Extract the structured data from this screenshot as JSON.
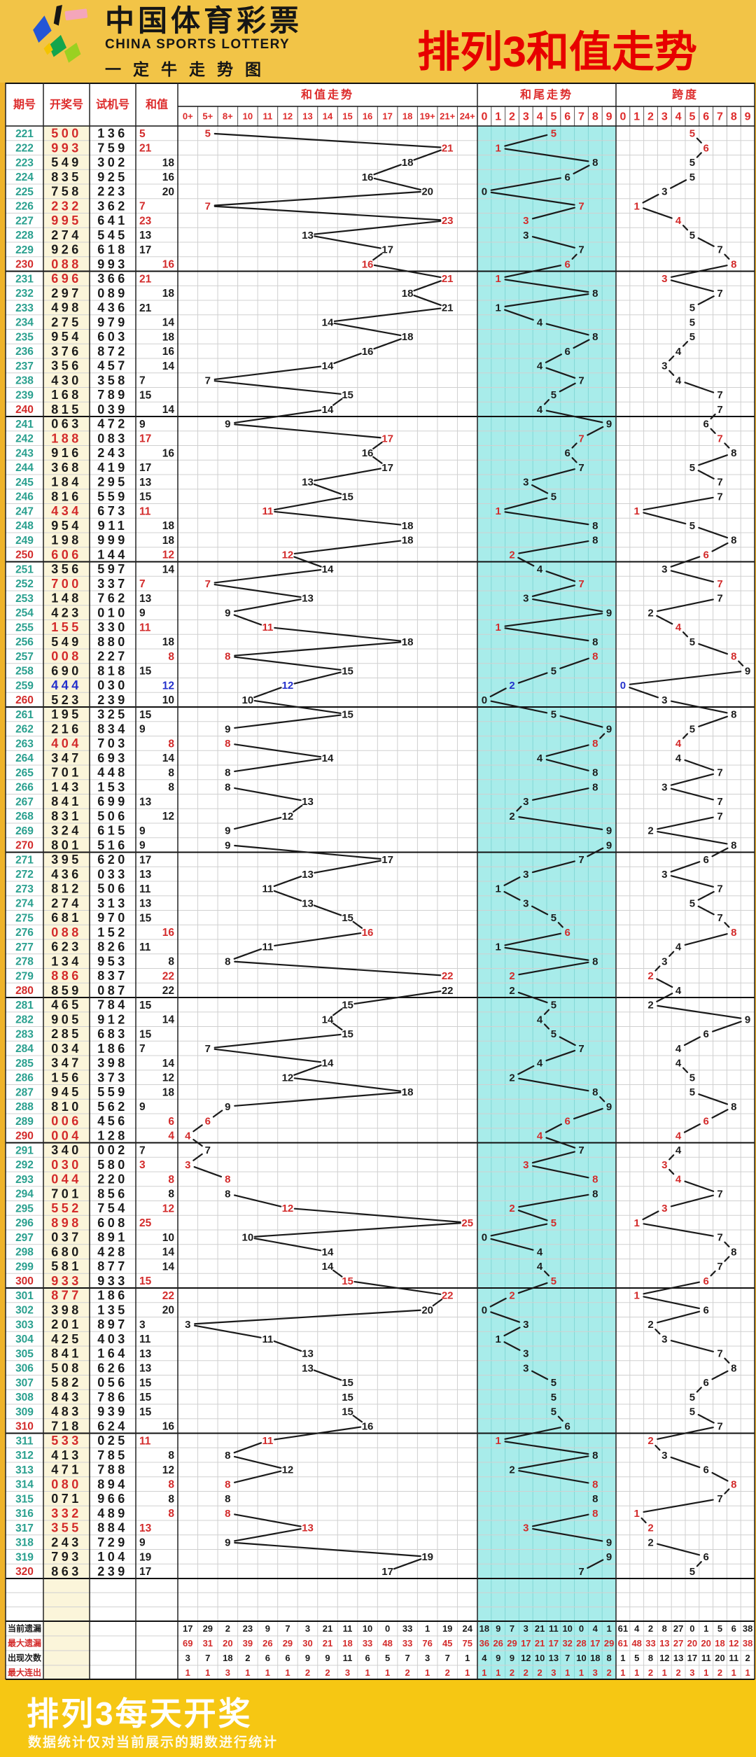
{
  "header": {
    "brand_cn": "中国体育彩票",
    "brand_en": "CHINA SPORTS LOTTERY",
    "brand_sub": "一定牛走势图",
    "title": "排列3和值走势"
  },
  "footer": {
    "title": "排列3每天开奖",
    "note": "数据统计仅对当前展示的期数进行统计"
  },
  "colors": {
    "red": "#d32b2b",
    "blue": "#2431cc",
    "teal": "#2aa08f",
    "black": "#1c1c1c",
    "header_red": "#dd2b2b",
    "title_red": "#e70000",
    "cyan_bg": "#a8ecea",
    "cyan_grid": "#83d7d5",
    "win_bg": "#fbf5da",
    "header_bg": "#f2c447",
    "footer_bg": "#f6c713",
    "grid_light": "#d0d0d0",
    "grid_dark": "#222222",
    "side_margin": "#efb32a",
    "line": "#1a1a1a"
  },
  "chart_data": {
    "type": "table",
    "title": "排列3和值走势",
    "columns": {
      "period": "期号",
      "win": "开奖号",
      "test": "试机号",
      "sum": "和值",
      "sum_trend": "和值走势",
      "sum_trend_cols": [
        "0+",
        "5+",
        "8+",
        "10",
        "11",
        "12",
        "13",
        "14",
        "15",
        "16",
        "17",
        "18",
        "19+",
        "21+",
        "24+"
      ],
      "tail_trend": "和尾走势",
      "tail_cols": [
        "0",
        "1",
        "2",
        "3",
        "4",
        "5",
        "6",
        "7",
        "8",
        "9"
      ],
      "span": "跨度",
      "span_cols": [
        "0",
        "1",
        "2",
        "3",
        "4",
        "5",
        "6",
        "7",
        "8",
        "9"
      ]
    },
    "row_format": [
      "period",
      "win",
      "test",
      "sum",
      "tail",
      "span",
      "flag(0=black,1=red-repeat,2=blue-triple)"
    ],
    "rows": [
      [
        221,
        "500",
        "136",
        5,
        5,
        5,
        1
      ],
      [
        222,
        "993",
        "759",
        21,
        1,
        6,
        1
      ],
      [
        223,
        "549",
        "302",
        18,
        8,
        5,
        0
      ],
      [
        224,
        "835",
        "925",
        16,
        6,
        5,
        0
      ],
      [
        225,
        "758",
        "223",
        20,
        0,
        3,
        0
      ],
      [
        226,
        "232",
        "362",
        7,
        7,
        1,
        1
      ],
      [
        227,
        "995",
        "641",
        23,
        3,
        4,
        1
      ],
      [
        228,
        "274",
        "545",
        13,
        3,
        5,
        0
      ],
      [
        229,
        "926",
        "618",
        17,
        7,
        7,
        0
      ],
      [
        230,
        "088",
        "993",
        16,
        6,
        8,
        1
      ],
      [
        231,
        "696",
        "366",
        21,
        1,
        3,
        1
      ],
      [
        232,
        "297",
        "089",
        18,
        8,
        7,
        0
      ],
      [
        233,
        "498",
        "436",
        21,
        1,
        5,
        0
      ],
      [
        234,
        "275",
        "979",
        14,
        4,
        5,
        0
      ],
      [
        235,
        "954",
        "603",
        18,
        8,
        5,
        0
      ],
      [
        236,
        "376",
        "872",
        16,
        6,
        4,
        0
      ],
      [
        237,
        "356",
        "457",
        14,
        4,
        3,
        0
      ],
      [
        238,
        "430",
        "358",
        7,
        7,
        4,
        0
      ],
      [
        239,
        "168",
        "789",
        15,
        5,
        7,
        0
      ],
      [
        240,
        "815",
        "039",
        14,
        4,
        7,
        0
      ],
      [
        241,
        "063",
        "472",
        9,
        9,
        6,
        0
      ],
      [
        242,
        "188",
        "083",
        17,
        7,
        7,
        1
      ],
      [
        243,
        "916",
        "243",
        16,
        6,
        8,
        0
      ],
      [
        244,
        "368",
        "419",
        17,
        7,
        5,
        0
      ],
      [
        245,
        "184",
        "295",
        13,
        3,
        7,
        0
      ],
      [
        246,
        "816",
        "559",
        15,
        5,
        7,
        0
      ],
      [
        247,
        "434",
        "673",
        11,
        1,
        1,
        1
      ],
      [
        248,
        "954",
        "911",
        18,
        8,
        5,
        0
      ],
      [
        249,
        "198",
        "999",
        18,
        8,
        8,
        0
      ],
      [
        250,
        "606",
        "144",
        12,
        2,
        6,
        1
      ],
      [
        251,
        "356",
        "597",
        14,
        4,
        3,
        0
      ],
      [
        252,
        "700",
        "337",
        7,
        7,
        7,
        1
      ],
      [
        253,
        "148",
        "762",
        13,
        3,
        7,
        0
      ],
      [
        254,
        "423",
        "010",
        9,
        9,
        2,
        0
      ],
      [
        255,
        "155",
        "330",
        11,
        1,
        4,
        1
      ],
      [
        256,
        "549",
        "880",
        18,
        8,
        5,
        0
      ],
      [
        257,
        "008",
        "227",
        8,
        8,
        8,
        1
      ],
      [
        258,
        "690",
        "818",
        15,
        5,
        9,
        0
      ],
      [
        259,
        "444",
        "030",
        12,
        2,
        0,
        2
      ],
      [
        260,
        "523",
        "239",
        10,
        0,
        3,
        0
      ],
      [
        261,
        "195",
        "325",
        15,
        5,
        8,
        0
      ],
      [
        262,
        "216",
        "834",
        9,
        9,
        5,
        0
      ],
      [
        263,
        "404",
        "703",
        8,
        8,
        4,
        1
      ],
      [
        264,
        "347",
        "693",
        14,
        4,
        4,
        0
      ],
      [
        265,
        "701",
        "448",
        8,
        8,
        7,
        0
      ],
      [
        266,
        "143",
        "153",
        8,
        8,
        3,
        0
      ],
      [
        267,
        "841",
        "699",
        13,
        3,
        7,
        0
      ],
      [
        268,
        "831",
        "506",
        12,
        2,
        7,
        0
      ],
      [
        269,
        "324",
        "615",
        9,
        9,
        2,
        0
      ],
      [
        270,
        "801",
        "516",
        9,
        9,
        8,
        0
      ],
      [
        271,
        "395",
        "620",
        17,
        7,
        6,
        0
      ],
      [
        272,
        "436",
        "033",
        13,
        3,
        3,
        0
      ],
      [
        273,
        "812",
        "506",
        11,
        1,
        7,
        0
      ],
      [
        274,
        "274",
        "313",
        13,
        3,
        5,
        0
      ],
      [
        275,
        "681",
        "970",
        15,
        5,
        7,
        0
      ],
      [
        276,
        "088",
        "152",
        16,
        6,
        8,
        1
      ],
      [
        277,
        "623",
        "826",
        11,
        1,
        4,
        0
      ],
      [
        278,
        "134",
        "953",
        8,
        8,
        3,
        0
      ],
      [
        279,
        "886",
        "837",
        22,
        2,
        2,
        1
      ],
      [
        280,
        "859",
        "087",
        22,
        2,
        4,
        0
      ],
      [
        281,
        "465",
        "784",
        15,
        5,
        2,
        0
      ],
      [
        282,
        "905",
        "912",
        14,
        4,
        9,
        0
      ],
      [
        283,
        "285",
        "683",
        15,
        5,
        6,
        0
      ],
      [
        284,
        "034",
        "186",
        7,
        7,
        4,
        0
      ],
      [
        285,
        "347",
        "398",
        14,
        4,
        4,
        0
      ],
      [
        286,
        "156",
        "373",
        12,
        2,
        5,
        0
      ],
      [
        287,
        "945",
        "559",
        18,
        8,
        5,
        0
      ],
      [
        288,
        "810",
        "562",
        9,
        9,
        8,
        0
      ],
      [
        289,
        "006",
        "456",
        6,
        6,
        6,
        1
      ],
      [
        290,
        "004",
        "128",
        4,
        4,
        4,
        1
      ],
      [
        291,
        "340",
        "002",
        7,
        7,
        4,
        0
      ],
      [
        292,
        "030",
        "580",
        3,
        3,
        3,
        1
      ],
      [
        293,
        "044",
        "220",
        8,
        8,
        4,
        1
      ],
      [
        294,
        "701",
        "856",
        8,
        8,
        7,
        0
      ],
      [
        295,
        "552",
        "754",
        12,
        2,
        3,
        1
      ],
      [
        296,
        "898",
        "608",
        25,
        5,
        1,
        1
      ],
      [
        297,
        "037",
        "891",
        10,
        0,
        7,
        0
      ],
      [
        298,
        "680",
        "428",
        14,
        4,
        8,
        0
      ],
      [
        299,
        "581",
        "877",
        14,
        4,
        7,
        0
      ],
      [
        300,
        "933",
        "933",
        15,
        5,
        6,
        1
      ],
      [
        301,
        "877",
        "186",
        22,
        2,
        1,
        1
      ],
      [
        302,
        "398",
        "135",
        20,
        0,
        6,
        0
      ],
      [
        303,
        "201",
        "897",
        3,
        3,
        2,
        0
      ],
      [
        304,
        "425",
        "403",
        11,
        1,
        3,
        0
      ],
      [
        305,
        "841",
        "164",
        13,
        3,
        7,
        0
      ],
      [
        306,
        "508",
        "626",
        13,
        3,
        8,
        0
      ],
      [
        307,
        "582",
        "056",
        15,
        5,
        6,
        0
      ],
      [
        308,
        "843",
        "786",
        15,
        5,
        5,
        0
      ],
      [
        309,
        "483",
        "939",
        15,
        5,
        5,
        0
      ],
      [
        310,
        "718",
        "624",
        16,
        6,
        7,
        0
      ],
      [
        311,
        "533",
        "025",
        11,
        1,
        2,
        1
      ],
      [
        312,
        "413",
        "785",
        8,
        8,
        3,
        0
      ],
      [
        313,
        "471",
        "788",
        12,
        2,
        6,
        0
      ],
      [
        314,
        "080",
        "894",
        8,
        8,
        8,
        1
      ],
      [
        315,
        "071",
        "966",
        8,
        8,
        7,
        0
      ],
      [
        316,
        "332",
        "489",
        8,
        8,
        1,
        1
      ],
      [
        317,
        "355",
        "884",
        13,
        3,
        2,
        1
      ],
      [
        318,
        "243",
        "729",
        9,
        9,
        2,
        0
      ],
      [
        319,
        "793",
        "104",
        19,
        9,
        6,
        0
      ],
      [
        320,
        "863",
        "239",
        17,
        7,
        5,
        0
      ]
    ],
    "stats": [
      {
        "label": "当前遗漏",
        "color": "k",
        "sum": [
          17,
          29,
          2,
          23,
          9,
          7,
          3,
          21,
          11,
          10,
          0,
          33,
          1,
          19,
          24
        ],
        "tail": [
          18,
          9,
          7,
          3,
          21,
          11,
          10,
          0,
          4,
          1
        ],
        "span": [
          61,
          4,
          2,
          8,
          27,
          0,
          1,
          5,
          6,
          38
        ]
      },
      {
        "label": "最大遗漏",
        "color": "r",
        "sum": [
          69,
          31,
          20,
          39,
          26,
          29,
          30,
          21,
          18,
          33,
          48,
          33,
          76,
          45,
          75
        ],
        "tail": [
          36,
          26,
          29,
          17,
          21,
          17,
          32,
          28,
          17,
          29
        ],
        "span": [
          61,
          48,
          33,
          13,
          27,
          20,
          20,
          18,
          12,
          38
        ]
      },
      {
        "label": "出现次数",
        "color": "k",
        "sum": [
          3,
          7,
          18,
          2,
          6,
          6,
          9,
          9,
          11,
          6,
          5,
          7,
          3,
          7,
          1
        ],
        "tail": [
          4,
          9,
          9,
          12,
          10,
          13,
          7,
          10,
          18,
          8
        ],
        "span": [
          1,
          5,
          8,
          12,
          13,
          17,
          11,
          20,
          11,
          2
        ]
      },
      {
        "label": "最大连出",
        "color": "r",
        "sum": [
          1,
          1,
          3,
          1,
          1,
          1,
          2,
          2,
          3,
          1,
          1,
          2,
          1,
          2,
          1
        ],
        "tail": [
          1,
          1,
          2,
          2,
          2,
          3,
          1,
          1,
          3,
          2
        ],
        "span": [
          1,
          1,
          2,
          1,
          2,
          3,
          1,
          2,
          1,
          1
        ]
      }
    ]
  }
}
